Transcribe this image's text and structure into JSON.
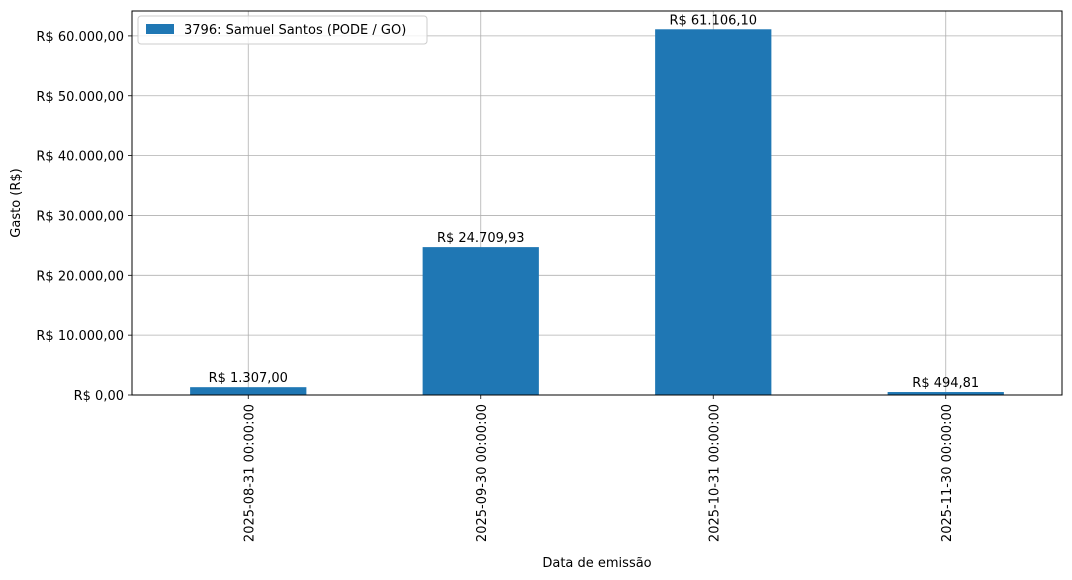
{
  "chart_data": {
    "type": "bar",
    "title": "",
    "xlabel": "Data de emissão",
    "ylabel": "Gasto (R$)",
    "categories": [
      "2025-08-31 00:00:00",
      "2025-09-30 00:00:00",
      "2025-10-31 00:00:00",
      "2025-11-30 00:00:00"
    ],
    "series": [
      {
        "name": "3796: Samuel Santos (PODE / GO)",
        "color": "#1f77b4",
        "values": [
          1307.0,
          24709.93,
          61106.1,
          494.81
        ],
        "labels": [
          "R$ 1.307,00",
          "R$ 24.709,93",
          "R$ 61.106,10",
          "R$ 494,81"
        ]
      }
    ],
    "ylim": [
      0,
      64161.4
    ],
    "yticks": [
      0,
      10000,
      20000,
      30000,
      40000,
      50000,
      60000
    ],
    "ytick_labels": [
      "R$ 0,00",
      "R$ 10.000,00",
      "R$ 20.000,00",
      "R$ 30.000,00",
      "R$ 40.000,00",
      "R$ 50.000,00",
      "R$ 60.000,00"
    ],
    "grid": true,
    "legend_position": "top-left"
  }
}
